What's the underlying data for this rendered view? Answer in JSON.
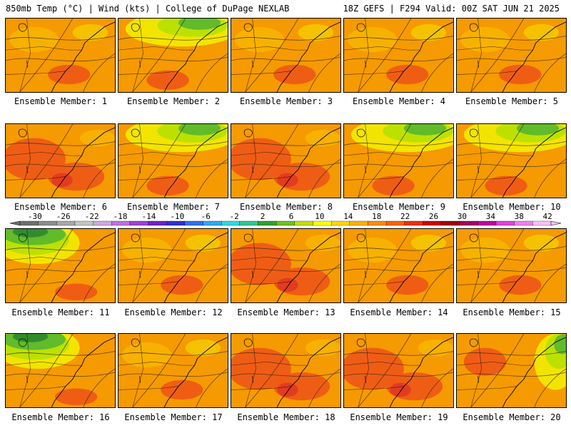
{
  "header": {
    "left": "850mb Temp (°C) | Wind (kts) | College of DuPage NEXLAB",
    "right": "18Z GEFS | F294 Valid: 00Z SAT JUN 21 2025"
  },
  "panels": [
    {
      "label": "Ensemble Member: 1",
      "theme": "warm"
    },
    {
      "label": "Ensemble Member: 2",
      "theme": "north-cool"
    },
    {
      "label": "Ensemble Member: 3",
      "theme": "warm"
    },
    {
      "label": "Ensemble Member: 4",
      "theme": "warm"
    },
    {
      "label": "Ensemble Member: 5",
      "theme": "warm"
    },
    {
      "label": "Ensemble Member: 6",
      "theme": "hot"
    },
    {
      "label": "Ensemble Member: 7",
      "theme": "north-cool"
    },
    {
      "label": "Ensemble Member: 8",
      "theme": "hot"
    },
    {
      "label": "Ensemble Member: 9",
      "theme": "north-cool"
    },
    {
      "label": "Ensemble Member: 10",
      "theme": "north-cool"
    },
    {
      "label": "Ensemble Member: 11",
      "theme": "nw-cool"
    },
    {
      "label": "Ensemble Member: 12",
      "theme": "warm"
    },
    {
      "label": "Ensemble Member: 13",
      "theme": "hot"
    },
    {
      "label": "Ensemble Member: 14",
      "theme": "warm"
    },
    {
      "label": "Ensemble Member: 15",
      "theme": "warm"
    },
    {
      "label": "Ensemble Member: 16",
      "theme": "nw-cool"
    },
    {
      "label": "Ensemble Member: 17",
      "theme": "warm"
    },
    {
      "label": "Ensemble Member: 18",
      "theme": "hot"
    },
    {
      "label": "Ensemble Member: 19",
      "theme": "hot"
    },
    {
      "label": "Ensemble Member: 20",
      "theme": "ne-cool"
    }
  ],
  "colorbar": {
    "labels": [
      "-30",
      "-26",
      "-22",
      "-18",
      "-14",
      "-10",
      "-6",
      "-2",
      "2",
      "6",
      "10",
      "14",
      "18",
      "22",
      "26",
      "30",
      "34",
      "38",
      "42"
    ],
    "colors": [
      "#6e6e6e",
      "#8c8c8c",
      "#a8a8a8",
      "#c4c4c4",
      "#cfa8e0",
      "#c070e0",
      "#a040d8",
      "#7020c8",
      "#3030d0",
      "#3070f0",
      "#30a8f0",
      "#30d8e0",
      "#30c890",
      "#30a030",
      "#70c020",
      "#c0e000",
      "#ffff00",
      "#ffd800",
      "#ffb000",
      "#ff8c00",
      "#ff6000",
      "#f03000",
      "#d00000",
      "#a00000",
      "#a00060",
      "#c000a0",
      "#e040e0",
      "#f080f0",
      "#f8c0f8"
    ]
  },
  "colors": {
    "orange": "#f59a00",
    "orange_light": "#f7b200",
    "yellow_orange": "#f3c400",
    "yellow": "#f2e800",
    "yellow_green": "#b8e000",
    "green": "#5cb82c",
    "dark_green": "#2e8a2c",
    "red_orange": "#ee5a16",
    "red": "#e03a20"
  }
}
